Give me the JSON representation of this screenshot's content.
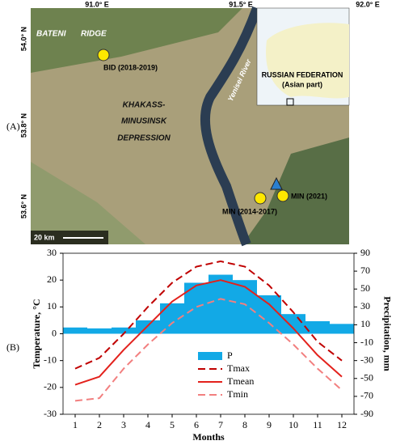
{
  "panels": [
    "(A)",
    "(B)"
  ],
  "map": {
    "lon_labels": [
      "91.0° E",
      "91.5° E",
      "92.0° E"
    ],
    "lat_labels": [
      "54.0° N",
      "53.8° N",
      "53.6° N"
    ],
    "region": [
      "BATENI",
      "RIDGE"
    ],
    "depression": [
      "KHAKASS-",
      "MINUSINSK",
      "DEPRESSION"
    ],
    "river": "Yenisei River",
    "sites": [
      "BID (2018-2019)",
      "MIN (2014-2017)",
      "MIN (2021)"
    ],
    "inset": [
      "RUSSIAN FEDERATION",
      "(Asian part)"
    ],
    "scale": "20 km"
  },
  "chart_data": {
    "type": "combo",
    "x": [
      1,
      2,
      3,
      4,
      5,
      6,
      7,
      8,
      9,
      10,
      11,
      12
    ],
    "xlim": [
      0.5,
      12.5
    ],
    "xticks": [
      1,
      2,
      3,
      4,
      5,
      6,
      7,
      8,
      9,
      10,
      11,
      12
    ],
    "xlabel": "Months",
    "ylabel": "Temperature, °C",
    "y2label": "Precipitation, mm",
    "ylim": [
      -30,
      30
    ],
    "yticks": [
      30,
      20,
      10,
      0,
      -10,
      -20,
      -30
    ],
    "y2lim": [
      -90,
      90
    ],
    "y2ticks": [
      90,
      70,
      50,
      30,
      10,
      -10,
      -30,
      -50,
      -70,
      -90
    ],
    "legend": "lower center",
    "series": [
      {
        "name": "P",
        "type": "bar",
        "axis": "y2",
        "color": "#12a9e6",
        "values": [
          7,
          6,
          7,
          15,
          34,
          57,
          66,
          60,
          43,
          22,
          14,
          11
        ]
      },
      {
        "name": "Tmax",
        "type": "line",
        "dash": true,
        "color": "#c00000",
        "values": [
          -13,
          -9,
          0,
          10,
          19,
          25,
          27,
          25,
          18,
          8,
          -3,
          -10
        ]
      },
      {
        "name": "Tmean",
        "type": "line",
        "dash": false,
        "color": "#e3211c",
        "values": [
          -19,
          -16,
          -6,
          3,
          12,
          18,
          20,
          17.5,
          11,
          2,
          -8,
          -16
        ]
      },
      {
        "name": "Tmin",
        "type": "line",
        "dash": true,
        "color": "#f27f7f",
        "values": [
          -25,
          -24,
          -13,
          -4,
          4,
          10,
          13,
          11,
          4,
          -4,
          -13,
          -21
        ]
      }
    ]
  }
}
